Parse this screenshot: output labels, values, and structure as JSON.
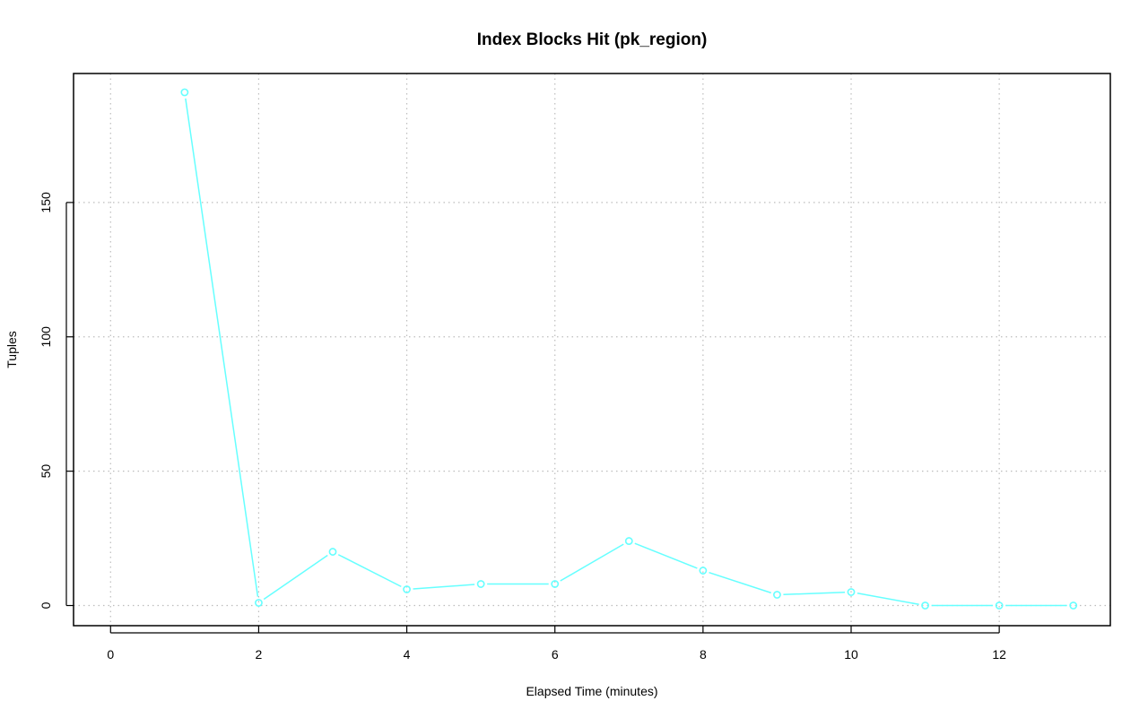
{
  "chart_data": {
    "type": "line",
    "title": "Index Blocks Hit (pk_region)",
    "xlabel": "Elapsed Time (minutes)",
    "ylabel": "Tuples",
    "x": [
      1,
      2,
      3,
      4,
      5,
      6,
      7,
      8,
      9,
      10,
      11,
      12,
      13
    ],
    "series": [
      {
        "values": [
          191,
          1,
          20,
          6,
          8,
          8,
          24,
          13,
          4,
          5,
          0,
          0,
          0
        ]
      }
    ],
    "xlim": [
      -0.5,
      13.5
    ],
    "ylim": [
      -7.5,
      198
    ],
    "xticks": [
      0,
      2,
      4,
      6,
      8,
      10,
      12
    ],
    "yticks": [
      0,
      50,
      100,
      150
    ],
    "grid": true,
    "colors": {
      "series": "#66ffff",
      "grid": "#bdbdbd",
      "frame": "#000000"
    }
  }
}
